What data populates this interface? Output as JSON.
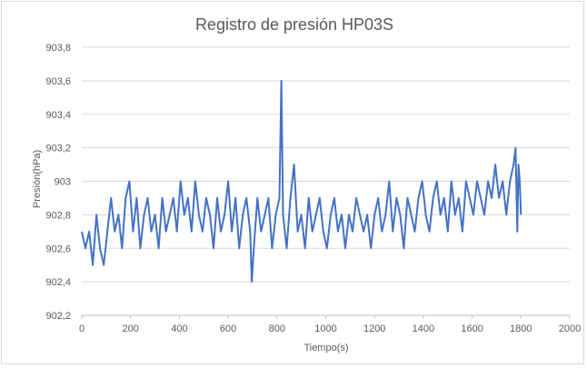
{
  "chart_data": {
    "type": "line",
    "title": "Registro de presión HP03S",
    "xlabel": "Tiempo(s)",
    "ylabel": "Presión(hPa)",
    "xlim": [
      0,
      2000
    ],
    "ylim": [
      902.2,
      903.8
    ],
    "x_ticks": [
      "0",
      "200",
      "400",
      "600",
      "800",
      "1000",
      "1200",
      "1400",
      "1600",
      "1800",
      "2000"
    ],
    "y_ticks": [
      "902,2",
      "902,4",
      "902,6",
      "902,8",
      "903",
      "903,2",
      "903,4",
      "903,6",
      "903,8"
    ],
    "grid": "horizontal",
    "legend": "none",
    "line_color": "#4472c4",
    "series": [
      {
        "x": [
          0,
          15,
          30,
          45,
          60,
          75,
          90,
          105,
          120,
          135,
          150,
          165,
          180,
          195,
          210,
          225,
          240,
          255,
          270,
          285,
          300,
          315,
          330,
          345,
          360,
          375,
          390,
          405,
          420,
          435,
          450,
          465,
          480,
          495,
          510,
          525,
          540,
          555,
          570,
          585,
          600,
          615,
          630,
          645,
          660,
          675,
          690,
          697,
          705,
          720,
          735,
          750,
          765,
          780,
          795,
          810,
          818,
          825,
          840,
          855,
          870,
          885,
          900,
          915,
          930,
          945,
          960,
          975,
          990,
          1005,
          1020,
          1035,
          1050,
          1065,
          1080,
          1095,
          1110,
          1125,
          1140,
          1155,
          1170,
          1185,
          1200,
          1215,
          1230,
          1245,
          1260,
          1275,
          1290,
          1305,
          1320,
          1335,
          1350,
          1365,
          1380,
          1395,
          1410,
          1425,
          1440,
          1455,
          1470,
          1485,
          1500,
          1515,
          1530,
          1545,
          1560,
          1575,
          1590,
          1605,
          1620,
          1635,
          1650,
          1665,
          1680,
          1695,
          1710,
          1725,
          1740,
          1755,
          1770,
          1778,
          1785,
          1790,
          1795,
          1800
        ],
        "y": [
          902.7,
          902.6,
          902.7,
          902.5,
          902.8,
          902.6,
          902.5,
          902.7,
          902.9,
          902.7,
          902.8,
          902.6,
          902.9,
          903.0,
          902.7,
          902.9,
          902.6,
          902.8,
          902.9,
          902.7,
          902.8,
          902.6,
          902.9,
          902.7,
          902.8,
          902.9,
          902.7,
          903.0,
          902.8,
          902.9,
          902.7,
          903.0,
          902.8,
          902.7,
          902.9,
          902.8,
          902.6,
          902.9,
          902.7,
          902.8,
          903.0,
          902.7,
          902.9,
          902.6,
          902.8,
          902.9,
          902.7,
          902.4,
          902.6,
          902.9,
          902.7,
          902.8,
          902.9,
          902.6,
          902.8,
          902.9,
          903.6,
          902.8,
          902.6,
          902.9,
          903.1,
          902.7,
          902.8,
          902.6,
          902.9,
          902.7,
          902.8,
          902.9,
          902.7,
          902.6,
          902.8,
          902.9,
          902.7,
          902.8,
          902.6,
          902.8,
          902.7,
          902.9,
          902.8,
          902.7,
          902.8,
          902.6,
          902.8,
          902.9,
          902.7,
          902.8,
          903.0,
          902.7,
          902.9,
          902.8,
          902.6,
          902.9,
          902.8,
          902.7,
          902.9,
          903.0,
          902.8,
          902.7,
          902.9,
          903.0,
          902.8,
          902.9,
          902.7,
          903.0,
          902.8,
          902.9,
          902.7,
          903.0,
          902.9,
          902.8,
          903.0,
          902.9,
          902.8,
          903.0,
          902.9,
          903.1,
          902.9,
          903.0,
          902.8,
          903.0,
          903.1,
          903.2,
          902.7,
          903.1,
          903.0,
          902.8
        ]
      }
    ]
  }
}
